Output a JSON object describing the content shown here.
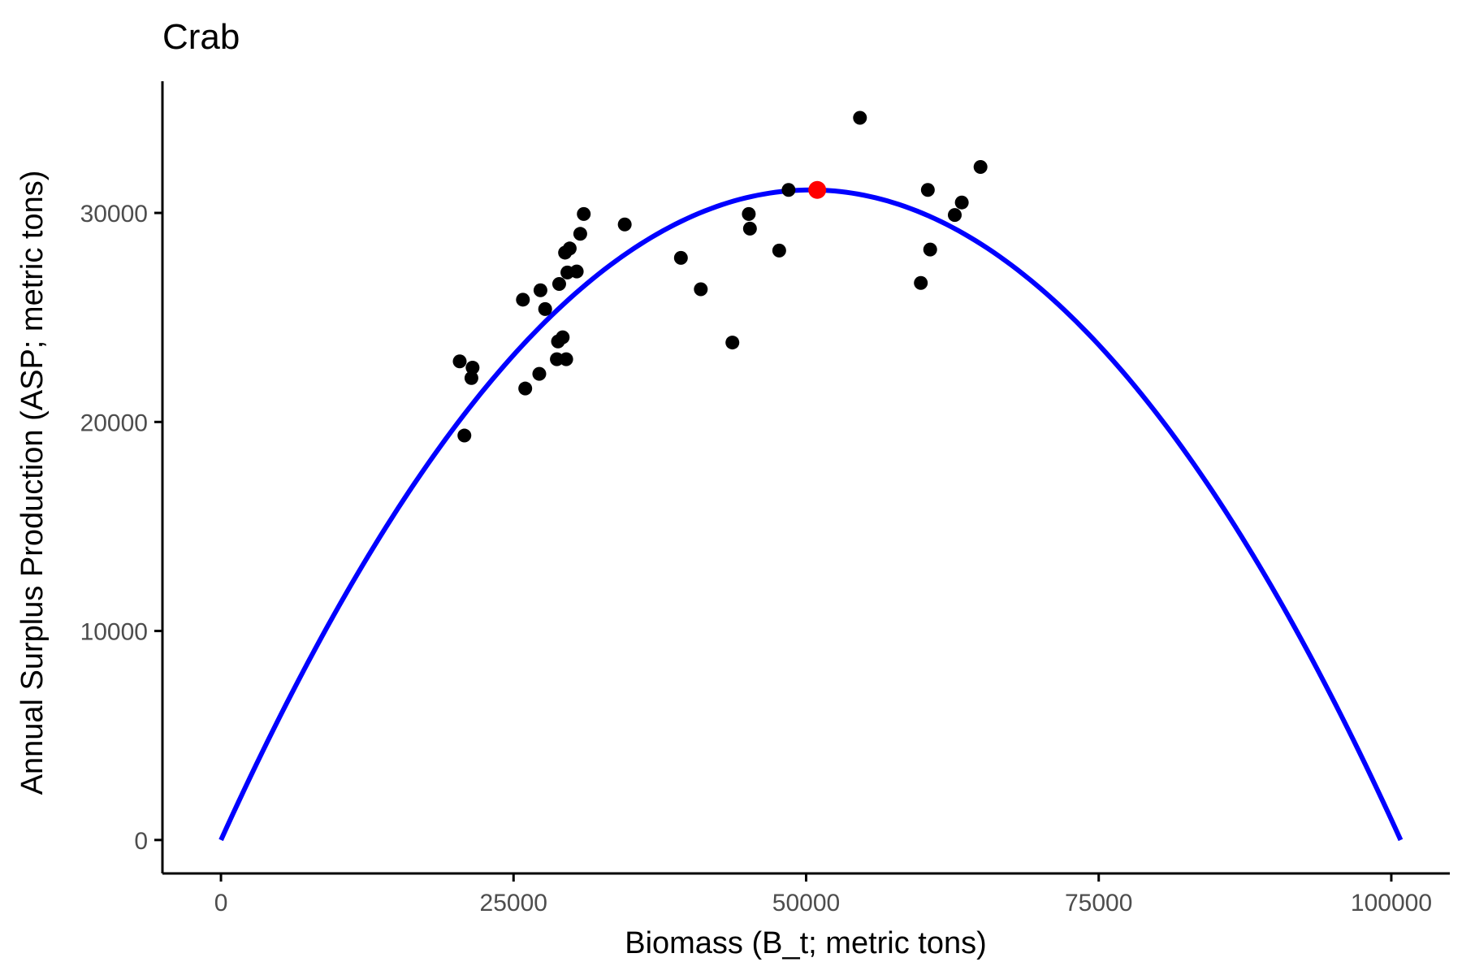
{
  "chart_data": {
    "type": "scatter",
    "title": "Crab",
    "xlabel": "Biomass (B_t; metric tons)",
    "ylabel": "Annual Surplus Production (ASP; metric tons)",
    "xlim": [
      -5000,
      105000
    ],
    "ylim": [
      -1600,
      36300
    ],
    "x_ticks": [
      0,
      25000,
      50000,
      75000,
      100000
    ],
    "x_tick_labels": [
      "0",
      "25000",
      "50000",
      "75000",
      "100000"
    ],
    "y_ticks": [
      0,
      10000,
      20000,
      30000
    ],
    "y_tick_labels": [
      "0",
      "10000",
      "20000",
      "30000"
    ],
    "grid": false,
    "legend": "none",
    "colors": {
      "points": "#000000",
      "curve": "#0000ff",
      "peak": "#ff0000",
      "axis": "#000000"
    },
    "curve": {
      "name": "",
      "type": "parabola",
      "x_range": [
        0,
        100800
      ],
      "peak": {
        "x": 50950,
        "y": 31100
      }
    },
    "peak_point": {
      "x": 50950,
      "y": 31100
    },
    "points": [
      {
        "x": 20400,
        "y": 22900
      },
      {
        "x": 20800,
        "y": 19350
      },
      {
        "x": 21400,
        "y": 22100
      },
      {
        "x": 21500,
        "y": 22600
      },
      {
        "x": 25800,
        "y": 25850
      },
      {
        "x": 26000,
        "y": 21600
      },
      {
        "x": 27200,
        "y": 22300
      },
      {
        "x": 27300,
        "y": 26300
      },
      {
        "x": 27700,
        "y": 25400
      },
      {
        "x": 28700,
        "y": 23000
      },
      {
        "x": 28800,
        "y": 23850
      },
      {
        "x": 28900,
        "y": 26600
      },
      {
        "x": 29200,
        "y": 24050
      },
      {
        "x": 29400,
        "y": 28100
      },
      {
        "x": 29500,
        "y": 23000
      },
      {
        "x": 29600,
        "y": 27150
      },
      {
        "x": 29800,
        "y": 28300
      },
      {
        "x": 30400,
        "y": 27200
      },
      {
        "x": 30700,
        "y": 29000
      },
      {
        "x": 31000,
        "y": 29950
      },
      {
        "x": 34500,
        "y": 29450
      },
      {
        "x": 39300,
        "y": 27850
      },
      {
        "x": 41000,
        "y": 26350
      },
      {
        "x": 43700,
        "y": 23800
      },
      {
        "x": 45100,
        "y": 29950
      },
      {
        "x": 45200,
        "y": 29250
      },
      {
        "x": 47700,
        "y": 28200
      },
      {
        "x": 48500,
        "y": 31100
      },
      {
        "x": 54600,
        "y": 34550
      },
      {
        "x": 59800,
        "y": 26650
      },
      {
        "x": 60400,
        "y": 31100
      },
      {
        "x": 60600,
        "y": 28250
      },
      {
        "x": 62700,
        "y": 29900
      },
      {
        "x": 63300,
        "y": 30500
      },
      {
        "x": 64900,
        "y": 32200
      }
    ]
  }
}
